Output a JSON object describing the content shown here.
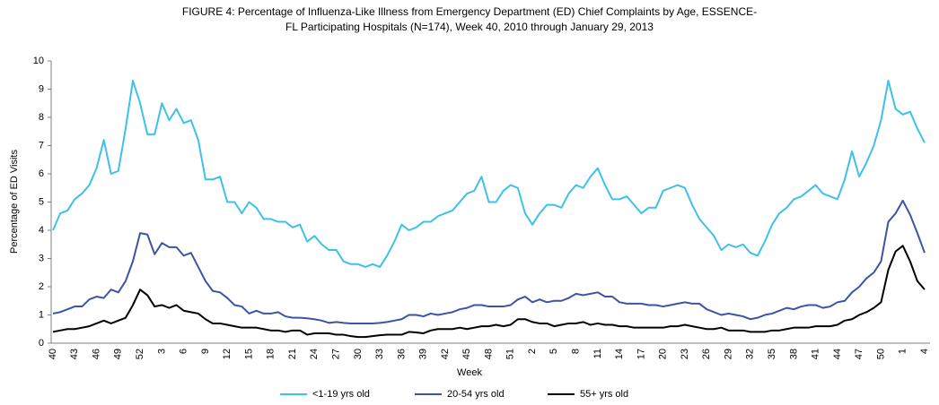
{
  "chart_data": {
    "type": "line",
    "title": [
      "FIGURE 4: Percentage of Influenza-Like Illness from Emergency Department  (ED) Chief Complaints by Age, ESSENCE-",
      "FL Participating Hospitals (N=174), Week 40, 2010 through January 29, 2013"
    ],
    "xlabel": "Week",
    "ylabel": "Percentage of ED Visits",
    "ylim": [
      0,
      10
    ],
    "yticks": [
      0,
      1,
      2,
      3,
      4,
      5,
      6,
      7,
      8,
      9,
      10
    ],
    "grid": false,
    "legend": "bottom",
    "categories": [
      "40",
      null,
      null,
      "43",
      null,
      null,
      "46",
      null,
      null,
      "49",
      null,
      null,
      "52",
      null,
      null,
      "3",
      null,
      null,
      "6",
      null,
      null,
      "9",
      null,
      null,
      "12",
      null,
      null,
      "15",
      null,
      null,
      "18",
      null,
      null,
      "21",
      null,
      null,
      "24",
      null,
      null,
      "27",
      null,
      null,
      "30",
      null,
      null,
      "33",
      null,
      null,
      "36",
      null,
      null,
      "39",
      null,
      null,
      "42",
      null,
      null,
      "45",
      null,
      null,
      "48",
      null,
      null,
      "51",
      null,
      null,
      "2",
      null,
      null,
      "5",
      null,
      null,
      "8",
      null,
      null,
      "11",
      null,
      null,
      "14",
      null,
      null,
      "17",
      null,
      null,
      "20",
      null,
      null,
      "23",
      null,
      null,
      "26",
      null,
      null,
      "29",
      null,
      null,
      "32",
      null,
      null,
      "35",
      null,
      null,
      "38",
      null,
      null,
      "41",
      null,
      null,
      "44",
      null,
      null,
      "47",
      null,
      null,
      "50",
      null,
      null,
      "1",
      null,
      null,
      "4"
    ],
    "series": [
      {
        "name": "<1-19 yrs old",
        "color": "#3ec1e9",
        "values": [
          4.0,
          4.6,
          4.7,
          5.1,
          5.3,
          5.6,
          6.2,
          7.2,
          6.0,
          6.1,
          7.6,
          9.3,
          8.5,
          7.4,
          7.4,
          8.5,
          7.9,
          8.3,
          7.8,
          7.9,
          7.2,
          5.8,
          5.8,
          5.9,
          5.0,
          5.0,
          4.6,
          5.0,
          4.8,
          4.4,
          4.4,
          4.3,
          4.3,
          4.1,
          4.2,
          3.6,
          3.8,
          3.5,
          3.3,
          3.3,
          2.9,
          2.8,
          2.8,
          2.7,
          2.8,
          2.7,
          3.1,
          3.6,
          4.2,
          4.0,
          4.1,
          4.3,
          4.3,
          4.5,
          4.6,
          4.7,
          5.0,
          5.3,
          5.4,
          5.9,
          5.0,
          5.0,
          5.4,
          5.6,
          5.5,
          4.6,
          4.2,
          4.6,
          4.9,
          4.9,
          4.8,
          5.3,
          5.6,
          5.5,
          5.9,
          6.2,
          5.6,
          5.1,
          5.1,
          5.2,
          4.9,
          4.6,
          4.8,
          4.8,
          5.4,
          5.5,
          5.6,
          5.5,
          4.9,
          4.4,
          4.1,
          3.8,
          3.3,
          3.5,
          3.4,
          3.5,
          3.2,
          3.1,
          3.6,
          4.2,
          4.6,
          4.8,
          5.1,
          5.2,
          5.4,
          5.6,
          5.3,
          5.2,
          5.1,
          5.8,
          6.8,
          5.9,
          6.4,
          7.0,
          7.9,
          9.3,
          8.3,
          8.1,
          8.2,
          7.6,
          7.1
        ]
      },
      {
        "name": "20-54 yrs old",
        "color": "#3a55a4",
        "values": [
          1.05,
          1.1,
          1.2,
          1.3,
          1.3,
          1.55,
          1.65,
          1.6,
          1.9,
          1.8,
          2.2,
          2.9,
          3.9,
          3.85,
          3.15,
          3.55,
          3.4,
          3.4,
          3.1,
          3.2,
          2.7,
          2.2,
          1.85,
          1.8,
          1.6,
          1.35,
          1.3,
          1.05,
          1.15,
          1.05,
          1.05,
          1.1,
          0.95,
          0.9,
          0.9,
          0.88,
          0.85,
          0.8,
          0.72,
          0.75,
          0.72,
          0.7,
          0.7,
          0.7,
          0.7,
          0.72,
          0.75,
          0.8,
          0.85,
          1.0,
          1.0,
          0.95,
          1.05,
          1.0,
          1.05,
          1.1,
          1.2,
          1.25,
          1.35,
          1.35,
          1.3,
          1.3,
          1.3,
          1.35,
          1.55,
          1.65,
          1.45,
          1.55,
          1.45,
          1.5,
          1.5,
          1.6,
          1.75,
          1.7,
          1.75,
          1.8,
          1.65,
          1.65,
          1.45,
          1.4,
          1.4,
          1.4,
          1.35,
          1.35,
          1.3,
          1.35,
          1.4,
          1.45,
          1.4,
          1.4,
          1.2,
          1.1,
          1.0,
          1.05,
          1.0,
          0.95,
          0.85,
          0.9,
          1.0,
          1.05,
          1.15,
          1.25,
          1.2,
          1.3,
          1.35,
          1.35,
          1.25,
          1.3,
          1.45,
          1.5,
          1.8,
          2.0,
          2.3,
          2.5,
          2.9,
          4.3,
          4.6,
          5.05,
          4.55,
          3.9,
          3.2
        ]
      },
      {
        "name": "55+ yrs old",
        "color": "#000000",
        "values": [
          0.4,
          0.45,
          0.5,
          0.5,
          0.55,
          0.6,
          0.7,
          0.8,
          0.7,
          0.8,
          0.9,
          1.35,
          1.9,
          1.7,
          1.3,
          1.35,
          1.25,
          1.35,
          1.15,
          1.1,
          1.05,
          0.85,
          0.7,
          0.7,
          0.65,
          0.6,
          0.55,
          0.55,
          0.55,
          0.5,
          0.45,
          0.45,
          0.4,
          0.45,
          0.45,
          0.3,
          0.35,
          0.35,
          0.35,
          0.3,
          0.3,
          0.25,
          0.22,
          0.22,
          0.25,
          0.28,
          0.3,
          0.3,
          0.3,
          0.4,
          0.38,
          0.35,
          0.45,
          0.5,
          0.5,
          0.5,
          0.55,
          0.5,
          0.55,
          0.6,
          0.6,
          0.65,
          0.6,
          0.65,
          0.85,
          0.85,
          0.75,
          0.7,
          0.7,
          0.6,
          0.65,
          0.7,
          0.7,
          0.75,
          0.65,
          0.7,
          0.65,
          0.65,
          0.6,
          0.6,
          0.55,
          0.55,
          0.55,
          0.55,
          0.55,
          0.6,
          0.6,
          0.65,
          0.6,
          0.55,
          0.5,
          0.5,
          0.55,
          0.45,
          0.45,
          0.45,
          0.4,
          0.4,
          0.4,
          0.45,
          0.45,
          0.5,
          0.55,
          0.55,
          0.55,
          0.6,
          0.6,
          0.6,
          0.65,
          0.8,
          0.85,
          1.0,
          1.1,
          1.25,
          1.45,
          2.6,
          3.25,
          3.45,
          2.9,
          2.2,
          1.9
        ]
      }
    ]
  }
}
